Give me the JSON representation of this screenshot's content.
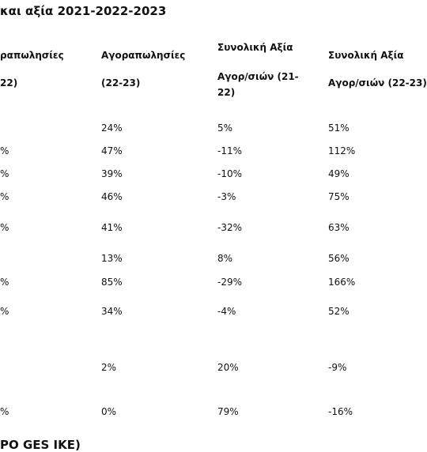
{
  "title": "και αξία 2021-2022-2023",
  "table": {
    "header": [
      [
        "ραπωλησίες",
        "22)"
      ],
      [
        "Αγοραπωλησίες",
        "(22-23)"
      ],
      [
        "Συνολική Αξία",
        "Αγορ/σιών (21-",
        "22)"
      ],
      [
        "Συνολική Αξία",
        "Αγορ/σιών (22-23)"
      ]
    ],
    "rows": [
      [
        null,
        "24%",
        "5%",
        "51%"
      ],
      [
        "%",
        "47%",
        "-11%",
        "112%"
      ],
      [
        "%",
        "39%",
        "-10%",
        "49%"
      ],
      [
        "%",
        "46%",
        "-3%",
        "75%"
      ],
      [
        "%",
        "41%",
        "-32%",
        "63%"
      ],
      [
        null,
        "13%",
        "8%",
        "56%"
      ],
      [
        "%",
        "85%",
        "-29%",
        "166%"
      ],
      [
        "%",
        "34%",
        "-4%",
        "52%"
      ],
      [
        null,
        "2%",
        "20%",
        "-9%"
      ],
      [
        "%",
        "0%",
        "79%",
        "-16%"
      ]
    ]
  },
  "footer": "PO GES IKE)"
}
